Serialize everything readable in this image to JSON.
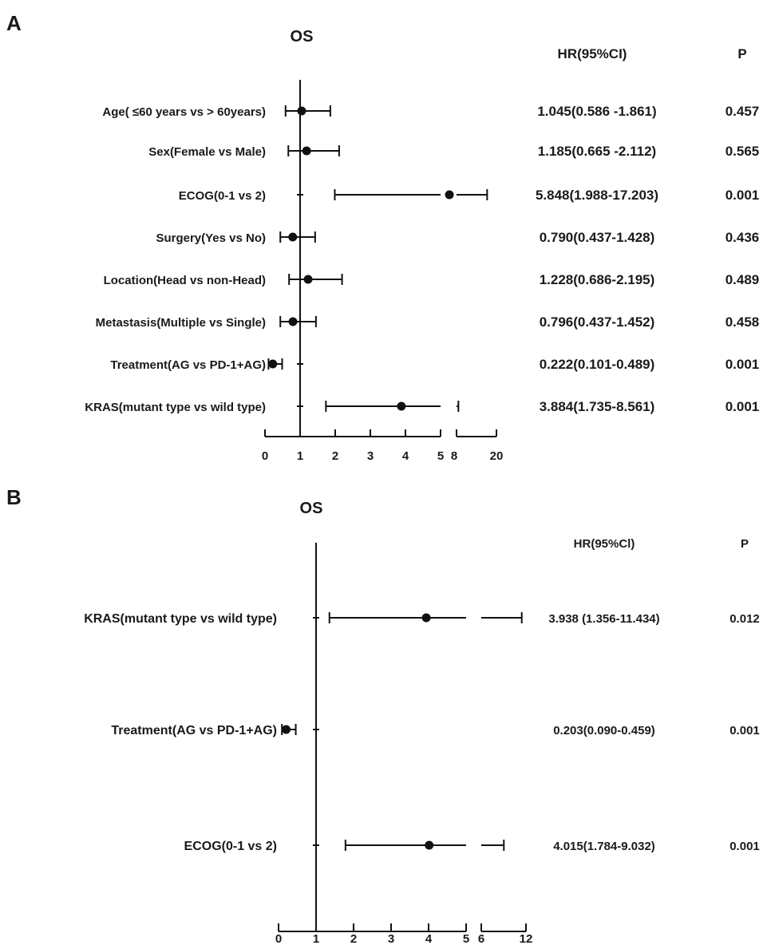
{
  "chart_data": [
    {
      "panel": "A",
      "type": "forest",
      "title": "OS",
      "columns": [
        "HR(95%CI)",
        "P"
      ],
      "x_ticks": [
        "0",
        "1",
        "2",
        "3",
        "4",
        "5",
        "8",
        "20"
      ],
      "x_break": [
        5,
        8
      ],
      "rows": [
        {
          "label": "Age( ≤60 years vs > 60years)",
          "hr": 1.045,
          "lo": 0.586,
          "hi": 1.861,
          "hr_ci": "1.045(0.586 -1.861)",
          "p": "0.457"
        },
        {
          "label": "Sex(Female vs Male)",
          "hr": 1.185,
          "lo": 0.665,
          "hi": 2.112,
          "hr_ci": "1.185(0.665 -2.112)",
          "p": "0.565"
        },
        {
          "label": "ECOG(0-1 vs 2)",
          "hr": 5.848,
          "lo": 1.988,
          "hi": 17.203,
          "hr_ci": "5.848(1.988-17.203)",
          "p": "0.001"
        },
        {
          "label": "Surgery(Yes vs No)",
          "hr": 0.79,
          "lo": 0.437,
          "hi": 1.428,
          "hr_ci": "0.790(0.437-1.428)",
          "p": "0.436"
        },
        {
          "label": "Location(Head vs non-Head)",
          "hr": 1.228,
          "lo": 0.686,
          "hi": 2.195,
          "hr_ci": "1.228(0.686-2.195)",
          "p": "0.489"
        },
        {
          "label": "Metastasis(Multiple vs Single)",
          "hr": 0.796,
          "lo": 0.437,
          "hi": 1.452,
          "hr_ci": "0.796(0.437-1.452)",
          "p": "0.458"
        },
        {
          "label": "Treatment(AG vs PD-1+AG)",
          "hr": 0.222,
          "lo": 0.101,
          "hi": 0.489,
          "hr_ci": "0.222(0.101-0.489)",
          "p": "0.001"
        },
        {
          "label": "KRAS(mutant type vs wild type)",
          "hr": 3.884,
          "lo": 1.735,
          "hi": 8.561,
          "hr_ci": "3.884(1.735-8.561)",
          "p": "0.001"
        }
      ]
    },
    {
      "panel": "B",
      "type": "forest",
      "title": "OS",
      "columns": [
        "HR(95%Cl)",
        "P"
      ],
      "x_ticks": [
        "0",
        "1",
        "2",
        "3",
        "4",
        "5",
        "6",
        "12"
      ],
      "x_break": [
        5,
        6
      ],
      "rows": [
        {
          "label": "KRAS(mutant type vs wild type)",
          "hr": 3.938,
          "lo": 1.356,
          "hi": 11.434,
          "hr_ci": "3.938 (1.356-11.434)",
          "p": "0.012"
        },
        {
          "label": "Treatment(AG vs PD-1+AG)",
          "hr": 0.203,
          "lo": 0.09,
          "hi": 0.459,
          "hr_ci": "0.203(0.090-0.459)",
          "p": "0.001"
        },
        {
          "label": "ECOG(0-1 vs 2)",
          "hr": 4.015,
          "lo": 1.784,
          "hi": 9.032,
          "hr_ci": "4.015(1.784-9.032)",
          "p": "0.001"
        }
      ]
    }
  ]
}
